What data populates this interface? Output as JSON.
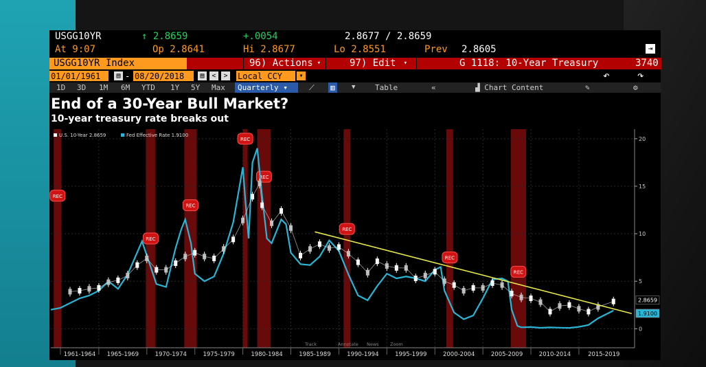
{
  "header": {
    "ticker": "USGG10YR",
    "last": "2.8659",
    "change": "+.0054",
    "bid_ask": "2.8677 / 2.8659",
    "time": "At 9:07",
    "open": "Op 2.8641",
    "high": "Hi 2.8677",
    "low": "Lo 2.8551",
    "prev_label": "Prev",
    "prev_value": "2.8605"
  },
  "menubar": {
    "index": "USGG10YR Index",
    "actions": "96) Actions",
    "edit": "97) Edit",
    "gtitle": "G 1118: 10-Year Treasury",
    "gnum": "3740"
  },
  "controls": {
    "start_date": "01/01/1961",
    "end_date": "08/20/2018",
    "currency": "Local CCY",
    "periods": [
      "1D",
      "3D",
      "1M",
      "6M",
      "YTD",
      "1Y",
      "5Y",
      "Max"
    ],
    "frequency": "Quarterly",
    "table_label": "Table",
    "chart_content": "Chart Content"
  },
  "chart_data": {
    "type": "line",
    "title": "End of a 30-Year Bull Market?",
    "subtitle": "10-year treasury rate breaks out",
    "legend": [
      {
        "name": "U.S. 10-Year 2.8659",
        "color": "#ffffff"
      },
      {
        "name": "Fed Effective Rate 1.9100",
        "color": "#29b6d6"
      }
    ],
    "ylim": [
      -2,
      21
    ],
    "y_ticks": [
      0,
      5,
      10,
      15,
      20
    ],
    "xlim": [
      1960,
      2020.8
    ],
    "x_tick_labels": [
      "1961-1964",
      "1965-1969",
      "1970-1974",
      "1975-1979",
      "1980-1984",
      "1985-1989",
      "1990-1994",
      "1995-1999",
      "2000-2004",
      "2005-2009",
      "2010-2014",
      "2015-2019"
    ],
    "x_tick_starts": [
      1961,
      1965,
      1970,
      1975,
      1980,
      1985,
      1990,
      1995,
      2000,
      2005,
      2010,
      2015
    ],
    "recession_label": "REC",
    "recessions": [
      [
        1960.3,
        1961.1
      ],
      [
        1969.9,
        1970.9
      ],
      [
        1973.9,
        1975.2
      ],
      [
        1980.0,
        1980.5
      ],
      [
        1981.5,
        1982.9
      ],
      [
        1990.5,
        1991.2
      ],
      [
        2001.2,
        2001.9
      ],
      [
        2007.9,
        2009.5
      ]
    ],
    "series": [
      {
        "name": "U.S. 10-Year",
        "color": "#ffffff",
        "x": [
          1962,
          1963,
          1964,
          1965,
          1966,
          1967,
          1968,
          1969,
          1970,
          1971,
          1972,
          1973,
          1974,
          1975,
          1976,
          1977,
          1978,
          1979,
          1980,
          1981,
          1981.75,
          1982,
          1983,
          1984,
          1985,
          1986,
          1987,
          1988,
          1989,
          1990,
          1991,
          1992,
          1993,
          1994,
          1995,
          1996,
          1997,
          1998,
          1999,
          2000,
          2001,
          2002,
          2003,
          2004,
          2005,
          2006,
          2007,
          2008,
          2009,
          2010,
          2011,
          2012,
          2013,
          2014,
          2015,
          2016,
          2017,
          2018.6
        ],
        "values": [
          3.9,
          4.0,
          4.2,
          4.3,
          4.9,
          5.1,
          5.6,
          6.7,
          7.4,
          6.2,
          6.2,
          6.9,
          7.6,
          8.0,
          7.6,
          7.4,
          8.4,
          9.4,
          11.4,
          13.9,
          15.3,
          13.0,
          11.1,
          12.4,
          10.6,
          7.7,
          8.4,
          8.9,
          8.5,
          8.6,
          7.9,
          7.0,
          5.9,
          7.1,
          6.6,
          6.4,
          6.4,
          5.3,
          5.6,
          6.0,
          5.0,
          4.6,
          4.0,
          4.3,
          4.3,
          4.8,
          4.6,
          3.7,
          3.3,
          3.2,
          2.8,
          1.8,
          2.4,
          2.5,
          2.1,
          1.8,
          2.3,
          2.87
        ]
      },
      {
        "name": "Fed Effective Rate",
        "color": "#29b6d6",
        "x": [
          1960,
          1961,
          1962,
          1963,
          1964,
          1965,
          1966,
          1967,
          1968,
          1969.5,
          1970.5,
          1971,
          1972,
          1973,
          1973.6,
          1974,
          1974.6,
          1975,
          1976,
          1977,
          1978,
          1979,
          1980,
          1980.3,
          1980.6,
          1981,
          1981.5,
          1982,
          1982.5,
          1983,
          1984,
          1984.5,
          1985,
          1986,
          1987,
          1988,
          1989,
          1990,
          1991,
          1992,
          1993,
          1994,
          1995,
          1996,
          1997,
          1998,
          1999,
          2000,
          2000.6,
          2001,
          2002,
          2003,
          2004,
          2005,
          2006,
          2007,
          2007.6,
          2008,
          2008.6,
          2009,
          2010,
          2011,
          2012,
          2013,
          2014,
          2015,
          2016,
          2017,
          2018.6
        ],
        "values": [
          2.0,
          2.2,
          2.7,
          3.2,
          3.5,
          4.0,
          5.0,
          4.2,
          5.7,
          9.2,
          6.2,
          4.7,
          4.4,
          8.5,
          10.5,
          11.5,
          9.0,
          5.8,
          5.0,
          5.5,
          7.9,
          11.2,
          17.0,
          13.0,
          9.5,
          17.5,
          19.0,
          14.0,
          9.5,
          9.0,
          11.5,
          11.0,
          8.0,
          6.8,
          6.7,
          7.6,
          9.3,
          8.2,
          5.7,
          3.5,
          3.0,
          4.5,
          5.8,
          5.3,
          5.5,
          5.3,
          5.0,
          6.2,
          6.5,
          4.0,
          1.7,
          1.0,
          1.4,
          3.2,
          5.2,
          5.3,
          5.0,
          2.0,
          0.3,
          0.15,
          0.18,
          0.1,
          0.14,
          0.11,
          0.09,
          0.2,
          0.4,
          1.1,
          1.91
        ]
      }
    ],
    "trendline": {
      "x": [
        1987.5,
        2020.5
      ],
      "values": [
        10.2,
        1.6
      ],
      "color": "#e8ea45"
    },
    "last_labels": [
      {
        "value": "2.8659",
        "y": 2.87,
        "bg": "#000000",
        "fg": "#ffffff"
      },
      {
        "value": "1.9100",
        "y": 1.91,
        "bg": "#29b6d6",
        "fg": "#000000"
      }
    ],
    "tools": [
      "Track",
      "Annotate",
      "News",
      "Zoom"
    ]
  }
}
